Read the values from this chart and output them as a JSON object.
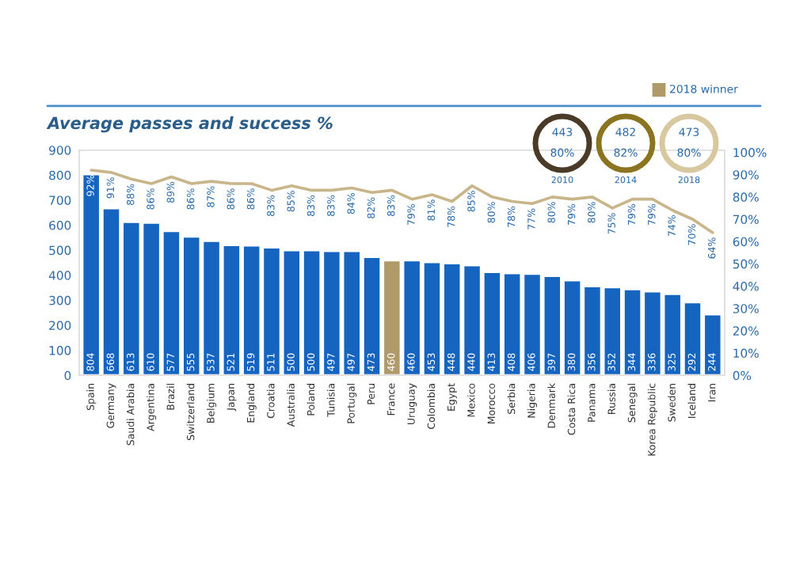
{
  "chart_data": {
    "type": "bar",
    "title": "Average passes and success %",
    "categories": [
      "Spain",
      "Germany",
      "Saudi Arabia",
      "Argentina",
      "Brazil",
      "Switzerland",
      "Belgium",
      "Japan",
      "England",
      "Croatia",
      "Australia",
      "Poland",
      "Tunisia",
      "Portugal",
      "Peru",
      "France",
      "Uruguay",
      "Colombia",
      "Egypt",
      "Mexico",
      "Morocco",
      "Serbia",
      "Nigeria",
      "Denmark",
      "Costa Rica",
      "Panama",
      "Russia",
      "Senegal",
      "Korea Republic",
      "Sweden",
      "Iceland",
      "Iran"
    ],
    "series": [
      {
        "color": "#1565c0",
        "colors": [
          "#1565c0",
          "#1565c0",
          "#1565c0",
          "#1565c0",
          "#1565c0",
          "#1565c0",
          "#1565c0",
          "#1565c0",
          "#1565c0",
          "#1565c0",
          "#1565c0",
          "#1565c0",
          "#1565c0",
          "#1565c0",
          "#1565c0",
          "#b09a6a",
          "#1565c0",
          "#1565c0",
          "#1565c0",
          "#1565c0",
          "#1565c0",
          "#1565c0",
          "#1565c0",
          "#1565c0",
          "#1565c0",
          "#1565c0",
          "#1565c0",
          "#1565c0",
          "#1565c0",
          "#1565c0",
          "#1565c0",
          "#1565c0"
        ],
        "values": [
          804,
          668,
          613,
          610,
          577,
          555,
          537,
          521,
          519,
          511,
          500,
          500,
          497,
          497,
          473,
          460,
          460,
          453,
          448,
          440,
          413,
          408,
          406,
          397,
          380,
          356,
          352,
          344,
          336,
          325,
          292,
          244
        ],
        "value_labels": [
          "804",
          "668",
          "613",
          "610",
          "577",
          "555",
          "537",
          "521",
          "519",
          "511",
          "500",
          "500",
          "497",
          "497",
          "473",
          "460",
          "460",
          "453",
          "448",
          "440",
          "413",
          "408",
          "406",
          "397",
          "380",
          "356",
          "352",
          "344",
          "336",
          "325",
          "292",
          "244"
        ]
      },
      {
        "type": "line",
        "axis": "y2",
        "color": "#c8b58a",
        "values": [
          92,
          91,
          88,
          86,
          89,
          86,
          87,
          86,
          86,
          83,
          85,
          83,
          83,
          84,
          82,
          83,
          79,
          81,
          78,
          85,
          80,
          78,
          77,
          80,
          79,
          80,
          75,
          79,
          79,
          74,
          70,
          64
        ],
        "value_labels": [
          "92%",
          "91%",
          "88%",
          "86%",
          "89%",
          "86%",
          "87%",
          "86%",
          "86%",
          "83%",
          "85%",
          "83%",
          "83%",
          "84%",
          "82%",
          "83%",
          "79%",
          "81%",
          "78%",
          "85%",
          "80%",
          "78%",
          "77%",
          "80%",
          "79%",
          "80%",
          "75%",
          "79%",
          "79%",
          "74%",
          "70%",
          "64%"
        ]
      }
    ],
    "ylim": [
      0,
      900
    ],
    "yticks": [
      0,
      100,
      200,
      300,
      400,
      500,
      600,
      700,
      800,
      900
    ],
    "y2lim": [
      0,
      101
    ],
    "y2ticks": [
      {
        "value": 0,
        "label": "0%"
      },
      {
        "value": 10,
        "label": "10%"
      },
      {
        "value": 20,
        "label": "20%"
      },
      {
        "value": 30,
        "label": "30%"
      },
      {
        "value": 40,
        "label": "40%"
      },
      {
        "value": 50,
        "label": "50%"
      },
      {
        "value": 60,
        "label": "60%"
      },
      {
        "value": 70,
        "label": "70%"
      },
      {
        "value": 80,
        "label": "80%"
      },
      {
        "value": 90,
        "label": "90%"
      },
      {
        "value": 100,
        "label": "100%"
      }
    ],
    "grid": false,
    "marker": "none",
    "annotations": [
      "2018 winner",
      "443",
      "80%",
      "2010",
      "482",
      "82%",
      "2014",
      "473",
      "80%",
      "2018"
    ]
  }
}
